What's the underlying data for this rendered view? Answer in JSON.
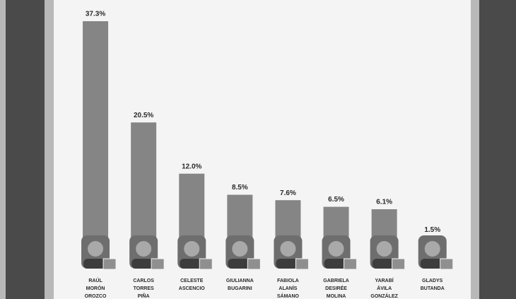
{
  "chart_data": {
    "type": "bar",
    "categories": [
      [
        "RAÚL",
        "MORÓN",
        "OROZCO"
      ],
      [
        "CARLOS",
        "TORRES",
        "PIÑA"
      ],
      [
        "CELESTE",
        "ASCENCIO"
      ],
      [
        "GIULIANNA",
        "BUGARINI"
      ],
      [
        "FABIOLA",
        "ALANÍS",
        "SÁMANO"
      ],
      [
        "GABRIELA",
        "DESIRÉE",
        "MOLINA"
      ],
      [
        "YARABÍ",
        "ÁVILA",
        "GONZÁLEZ"
      ],
      [
        "GLADYS",
        "BUTANDA"
      ]
    ],
    "values": [
      37.3,
      20.5,
      12.0,
      8.5,
      7.6,
      6.5,
      6.1,
      1.5
    ],
    "value_labels": [
      "37.3%",
      "20.5%",
      "12.0%",
      "8.5%",
      "7.6%",
      "6.5%",
      "6.1%",
      "1.5%"
    ],
    "color": "#858585",
    "ylim": [
      0,
      37.3
    ]
  }
}
